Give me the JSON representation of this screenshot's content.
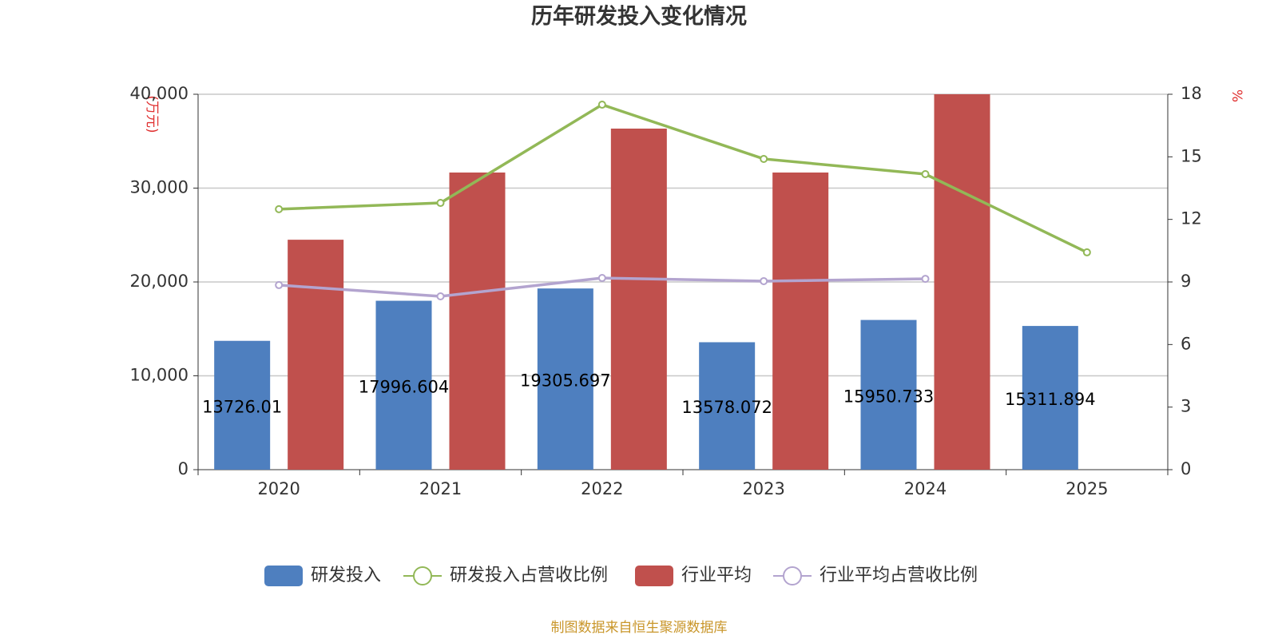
{
  "chart_data": {
    "type": "bar-line",
    "title": "历年研发投入变化情况",
    "y_label": "(万元)",
    "y2_label": "%",
    "source": "制图数据来自恒生聚源数据库",
    "categories": [
      "2020",
      "2021",
      "2022",
      "2023",
      "2024",
      "2025"
    ],
    "series": [
      {
        "name": "研发投入",
        "type": "bar",
        "color": "#4e7fbf",
        "values": [
          13726.01,
          17996.604,
          19305.697,
          13578.072,
          15950.733,
          15311.894
        ]
      },
      {
        "name": "研发投入占营收比例",
        "type": "line",
        "axis": "y2",
        "color": "#92b857",
        "values": [
          12.49,
          12.79,
          17.5,
          14.9,
          14.17,
          10.42
        ]
      },
      {
        "name": "行业平均",
        "type": "bar",
        "color": "#c0504d",
        "values": [
          24500,
          31660,
          36340,
          31660,
          40000,
          null
        ]
      },
      {
        "name": "行业平均占营收比例",
        "type": "line",
        "axis": "y2",
        "color": "#b3a4cf",
        "values": [
          8.85,
          8.31,
          9.19,
          9.04,
          9.15,
          null
        ]
      }
    ],
    "ylim": [
      0,
      40000
    ],
    "yticks": [
      0,
      {
        "value": 10000,
        "label": "10,000"
      },
      {
        "value": 20000,
        "label": "20,000"
      },
      {
        "value": 30000,
        "label": "30,000"
      },
      {
        "value": 40000,
        "label": "40,000"
      }
    ],
    "y2lim": [
      0,
      18
    ],
    "y2ticks": [
      0,
      3,
      6,
      9,
      12,
      15,
      18
    ],
    "grid": true,
    "legend": "bottom"
  }
}
